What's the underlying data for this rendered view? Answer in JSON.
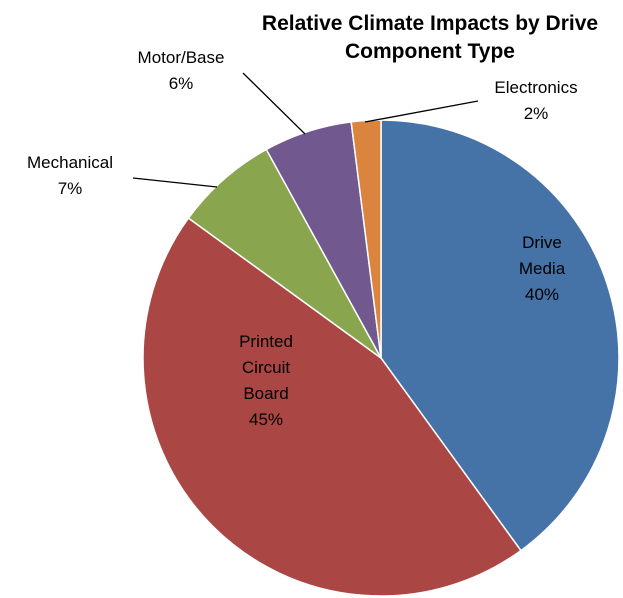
{
  "chart_data": {
    "type": "pie",
    "title_lines": [
      "Relative Climate Impacts by Drive",
      "Component Type"
    ],
    "slices": [
      {
        "label": "Drive Media",
        "label_lines": [
          "Drive",
          "Media"
        ],
        "percent_label": "40%",
        "value": 40,
        "color": "#4572A7"
      },
      {
        "label": "Printed Circuit Board",
        "label_lines": [
          "Printed",
          "Circuit",
          "Board"
        ],
        "percent_label": "45%",
        "value": 45,
        "color": "#AA4643"
      },
      {
        "label": "Mechanical",
        "label_lines": [
          "Mechanical"
        ],
        "percent_label": "7%",
        "value": 7,
        "color": "#89A54E"
      },
      {
        "label": "Motor/Base",
        "label_lines": [
          "Motor/Base"
        ],
        "percent_label": "6%",
        "value": 6,
        "color": "#71588F"
      },
      {
        "label": "Electronics",
        "label_lines": [
          "Electronics"
        ],
        "percent_label": "2%",
        "value": 2,
        "color": "#DB843D"
      }
    ],
    "legend": "none"
  }
}
